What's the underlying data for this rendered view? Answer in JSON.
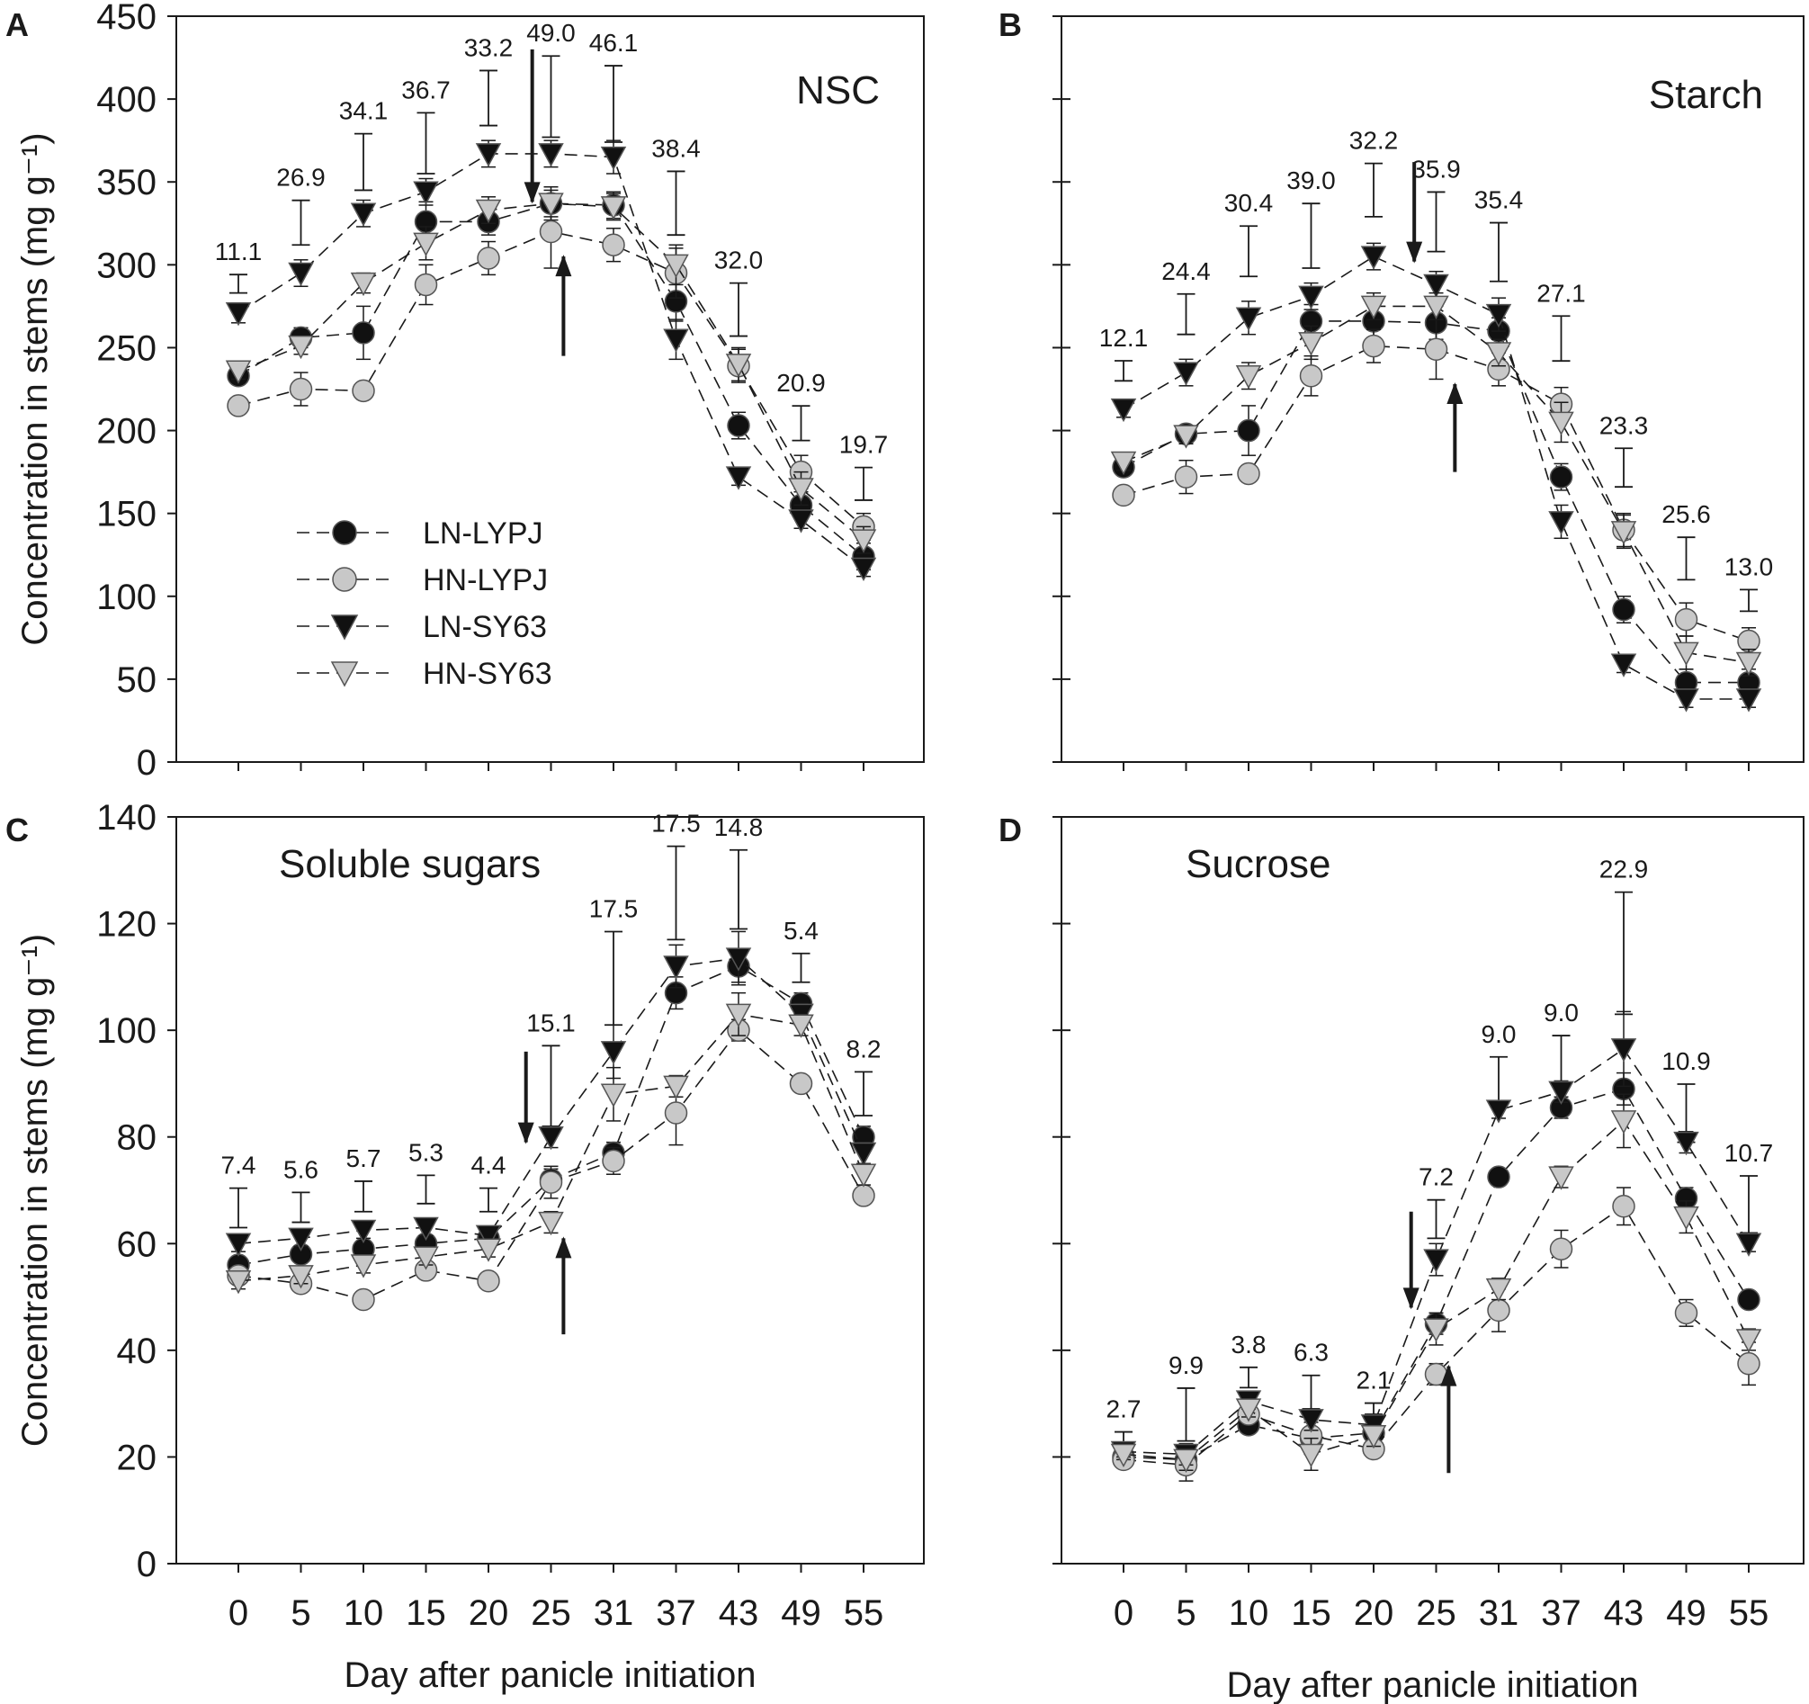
{
  "figure": {
    "x_axis_title": "Day after panicle initiation",
    "y_axis_title": "Concentration in stems (mg g⁻¹)",
    "legend": [
      {
        "label": "LN-LYPJ",
        "marker": "circle",
        "fill": "#111111"
      },
      {
        "label": "HN-LYPJ",
        "marker": "circle",
        "fill": "#c8c8c8"
      },
      {
        "label": "LN-SY63",
        "marker": "triangle-down",
        "fill": "#111111"
      },
      {
        "label": "HN-SY63",
        "marker": "triangle-down",
        "fill": "#c8c8c8"
      }
    ]
  },
  "chart_data": [
    {
      "type": "line",
      "panel": "A",
      "title": "NSC",
      "categories": [
        "0",
        "5",
        "10",
        "15",
        "20",
        "25",
        "31",
        "37",
        "43",
        "49",
        "55"
      ],
      "xlabel": "",
      "ylabel": "Concentration in stems (mg g⁻¹)",
      "ylim": [
        0,
        450
      ],
      "yticks": [
        0,
        50,
        100,
        150,
        200,
        250,
        300,
        350,
        400,
        450
      ],
      "series": [
        {
          "name": "LN-LYPJ",
          "values": [
            233,
            256,
            259,
            326,
            326,
            337,
            336,
            278,
            203,
            155,
            124
          ],
          "errors": [
            5,
            6,
            16,
            12,
            8,
            10,
            8,
            12,
            8,
            8,
            8
          ]
        },
        {
          "name": "HN-LYPJ",
          "values": [
            215,
            225,
            224,
            288,
            304,
            320,
            312,
            295,
            239,
            175,
            142
          ],
          "errors": [
            5,
            10,
            5,
            12,
            10,
            22,
            10,
            15,
            10,
            10,
            8
          ]
        },
        {
          "name": "LN-SY63",
          "values": [
            271,
            295,
            331,
            344,
            367,
            367,
            365,
            255,
            172,
            146,
            117
          ],
          "errors": [
            6,
            8,
            8,
            8,
            8,
            8,
            10,
            12,
            5,
            5,
            5
          ]
        },
        {
          "name": "HN-SY63",
          "values": [
            236,
            251,
            289,
            313,
            333,
            337,
            335,
            300,
            240,
            165,
            134
          ],
          "errors": [
            5,
            5,
            6,
            10,
            8,
            8,
            8,
            12,
            10,
            10,
            8
          ]
        }
      ],
      "lsd": [
        11.1,
        26.9,
        34.1,
        36.7,
        33.2,
        49.0,
        46.1,
        38.4,
        32.0,
        20.9,
        19.7
      ],
      "lsd_bases": [
        283,
        312,
        345,
        355,
        384,
        377,
        374,
        318,
        257,
        194,
        158
      ],
      "arrows": [
        {
          "day_index": 4.7,
          "from": 430,
          "to": 338,
          "direction": "down"
        },
        {
          "day_index": 5.2,
          "from": 245,
          "to": 305,
          "direction": "up"
        }
      ]
    },
    {
      "type": "line",
      "panel": "B",
      "title": "Starch",
      "categories": [
        "0",
        "5",
        "10",
        "15",
        "20",
        "25",
        "31",
        "37",
        "43",
        "49",
        "55"
      ],
      "xlabel": "Day after panicle initiation",
      "ylabel": "",
      "ylim": [
        0,
        450
      ],
      "yticks": [
        0,
        50,
        100,
        150,
        200,
        250,
        300,
        350,
        400,
        450
      ],
      "series": [
        {
          "name": "LN-LYPJ",
          "values": [
            178,
            198,
            200,
            266,
            266,
            265,
            260,
            172,
            92,
            48,
            48
          ],
          "errors": [
            5,
            5,
            15,
            10,
            10,
            10,
            8,
            8,
            8,
            8,
            8
          ]
        },
        {
          "name": "HN-LYPJ",
          "values": [
            161,
            172,
            174,
            233,
            251,
            249,
            237,
            216,
            140,
            86,
            73
          ],
          "errors": [
            5,
            10,
            5,
            12,
            10,
            18,
            10,
            10,
            10,
            10,
            8
          ]
        },
        {
          "name": "LN-SY63",
          "values": [
            213,
            235,
            268,
            281,
            305,
            288,
            270,
            145,
            59,
            38,
            38
          ],
          "errors": [
            5,
            8,
            10,
            8,
            8,
            8,
            10,
            10,
            5,
            5,
            5
          ]
        },
        {
          "name": "HN-SY63",
          "values": [
            181,
            197,
            233,
            253,
            275,
            275,
            247,
            205,
            139,
            66,
            60
          ],
          "errors": [
            5,
            5,
            8,
            10,
            8,
            8,
            8,
            12,
            10,
            10,
            8
          ]
        }
      ],
      "lsd": [
        12.1,
        24.4,
        30.4,
        39.0,
        32.2,
        35.9,
        35.4,
        27.1,
        23.3,
        25.6,
        13.0
      ],
      "lsd_bases": [
        230,
        258,
        293,
        298,
        329,
        308,
        290,
        242,
        166,
        110,
        91
      ],
      "arrows": [
        {
          "day_index": 4.65,
          "from": 362,
          "to": 302,
          "direction": "down"
        },
        {
          "day_index": 5.3,
          "from": 175,
          "to": 228,
          "direction": "up"
        }
      ]
    },
    {
      "type": "line",
      "panel": "C",
      "title": "Soluble sugars",
      "categories": [
        "0",
        "5",
        "10",
        "15",
        "20",
        "25",
        "31",
        "37",
        "43",
        "49",
        "55"
      ],
      "xlabel": "Day after panicle initiation",
      "ylabel": "Concentration in stems (mg g⁻¹)",
      "ylim": [
        0,
        140
      ],
      "yticks": [
        0,
        20,
        40,
        60,
        80,
        100,
        120,
        140
      ],
      "series": [
        {
          "name": "LN-LYPJ",
          "values": [
            56,
            58,
            59,
            60,
            61,
            72,
            77,
            107,
            112,
            105,
            80
          ],
          "errors": [
            1.5,
            1.5,
            1.5,
            1.5,
            1.5,
            2,
            2,
            3,
            3,
            2,
            2
          ]
        },
        {
          "name": "HN-LYPJ",
          "values": [
            54,
            52.5,
            49.5,
            55,
            53,
            71.5,
            75.5,
            84.5,
            100,
            90,
            69
          ],
          "errors": [
            1.5,
            1.5,
            1.5,
            1.5,
            1.5,
            3,
            2.5,
            6,
            2,
            1.5,
            1.5
          ]
        },
        {
          "name": "LN-SY63",
          "values": [
            60,
            61,
            62.5,
            63,
            61.5,
            80,
            96,
            112,
            113.5,
            103,
            77
          ],
          "errors": [
            1.5,
            1.5,
            1.5,
            1.5,
            1.5,
            2,
            5,
            4,
            5,
            2,
            2
          ]
        },
        {
          "name": "HN-SY63",
          "values": [
            53,
            54,
            56,
            57.5,
            59,
            64,
            88,
            89.5,
            103,
            101,
            73
          ],
          "errors": [
            1.5,
            1.5,
            1.5,
            1.5,
            1.5,
            2,
            5,
            2,
            4,
            2,
            2
          ]
        }
      ],
      "lsd": [
        7.4,
        5.6,
        5.7,
        5.3,
        4.4,
        15.1,
        17.5,
        17.5,
        14.8,
        5.4,
        8.2
      ],
      "lsd_bases": [
        63,
        64,
        66,
        67.5,
        66,
        82,
        101,
        117,
        119,
        109,
        84
      ],
      "arrows": [
        {
          "day_index": 4.6,
          "from": 96,
          "to": 79,
          "direction": "down"
        },
        {
          "day_index": 5.2,
          "from": 43,
          "to": 61,
          "direction": "up"
        }
      ]
    },
    {
      "type": "line",
      "panel": "D",
      "title": "Sucrose",
      "categories": [
        "0",
        "5",
        "10",
        "15",
        "20",
        "25",
        "31",
        "37",
        "43",
        "49",
        "55"
      ],
      "xlabel": "Day after panicle initiation",
      "ylabel": "",
      "ylim": [
        0,
        140
      ],
      "yticks": [
        0,
        20,
        40,
        60,
        80,
        100,
        120,
        140
      ],
      "series": [
        {
          "name": "LN-LYPJ",
          "values": [
            20,
            19.5,
            26,
            23.5,
            24.5,
            45,
            72.5,
            85.5,
            89,
            68.5,
            49.5
          ],
          "errors": [
            1,
            2,
            1.5,
            3,
            2,
            2,
            1.5,
            2,
            3,
            2,
            1.5
          ]
        },
        {
          "name": "HN-LYPJ",
          "values": [
            19.5,
            18.5,
            28,
            24,
            21.5,
            35.5,
            47.5,
            59,
            67,
            47,
            37.5
          ],
          "errors": [
            1,
            3,
            2,
            3,
            1.5,
            2,
            4,
            3.5,
            3.5,
            2.5,
            4
          ]
        },
        {
          "name": "LN-SY63",
          "values": [
            21,
            20.5,
            30.5,
            27,
            26,
            57,
            85,
            88.5,
            96.5,
            79,
            60
          ],
          "errors": [
            1,
            2,
            1.5,
            2,
            2,
            3,
            1.5,
            2,
            7,
            2,
            1.5
          ]
        },
        {
          "name": "HN-SY63",
          "values": [
            20.5,
            19.5,
            29,
            20.5,
            24,
            44,
            51.5,
            72.5,
            83,
            65,
            42
          ],
          "errors": [
            1,
            2,
            1.5,
            3,
            2,
            3,
            2,
            2,
            5,
            3,
            2
          ]
        }
      ],
      "lsd": [
        2.7,
        9.9,
        3.8,
        6.3,
        2.1,
        7.2,
        9.0,
        9.0,
        22.9,
        10.9,
        10.7
      ],
      "lsd_bases": [
        22,
        23,
        33,
        29,
        28,
        61,
        86,
        90,
        103,
        79,
        62
      ],
      "arrows": [
        {
          "day_index": 4.6,
          "from": 66,
          "to": 48,
          "direction": "down"
        },
        {
          "day_index": 5.2,
          "from": 17,
          "to": 37,
          "direction": "up"
        }
      ]
    }
  ]
}
